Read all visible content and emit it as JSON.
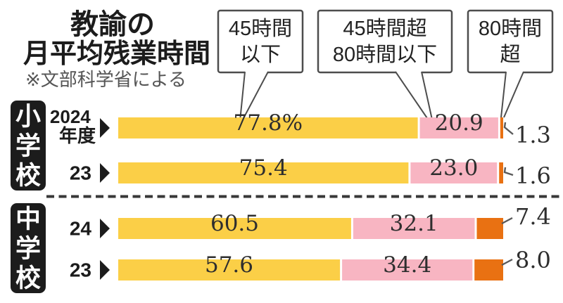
{
  "title": {
    "line1": "教諭の",
    "line2": "月平均残業時間",
    "note": "※文部科学省による"
  },
  "legend": [
    {
      "name": "45時間以下",
      "lines": [
        "45時間",
        "以下"
      ],
      "color": "#FBCF47"
    },
    {
      "name": "45時間超80時間以下",
      "lines": [
        "45時間超",
        "80時間以下"
      ],
      "color": "#F8B5C2"
    },
    {
      "name": "80時間超",
      "lines": [
        "80時間",
        "超"
      ],
      "color": "#E97112"
    }
  ],
  "groups": [
    {
      "name": "小学校",
      "chars": [
        "小",
        "学",
        "校"
      ]
    },
    {
      "name": "中学校",
      "chars": [
        "中",
        "学",
        "校"
      ]
    }
  ],
  "chart_data": {
    "type": "bar",
    "stacked": true,
    "orientation": "horizontal",
    "unit": "percent",
    "xlim": [
      0,
      100
    ],
    "title": "教諭の月平均残業時間",
    "source_note": "※文部科学省による",
    "series_names": [
      "45時間以下",
      "45時間超80時間以下",
      "80時間超"
    ],
    "series_colors": [
      "#FBCF47",
      "#F8B5C2",
      "#E97112"
    ],
    "rows": [
      {
        "group": "小学校",
        "year": "2024年度",
        "year_lines": [
          "2024",
          "年度"
        ],
        "values": [
          77.8,
          20.9,
          1.3
        ],
        "labels": [
          "77.8%",
          "20.9",
          "1.3"
        ]
      },
      {
        "group": "小学校",
        "year": "23",
        "year_lines": [
          "23"
        ],
        "values": [
          75.4,
          23.0,
          1.6
        ],
        "labels": [
          "75.4",
          "23.0",
          "1.6"
        ]
      },
      {
        "group": "中学校",
        "year": "24",
        "year_lines": [
          "24"
        ],
        "values": [
          60.5,
          32.1,
          7.4
        ],
        "labels": [
          "60.5",
          "32.1",
          "7.4"
        ]
      },
      {
        "group": "中学校",
        "year": "23",
        "year_lines": [
          "23"
        ],
        "values": [
          57.6,
          34.4,
          8.0
        ],
        "labels": [
          "57.6",
          "34.4",
          "8.0"
        ]
      }
    ]
  },
  "colors": {
    "bar_yellow": "#FBCF47",
    "bar_pink": "#F8B5C2",
    "bar_orange": "#E97112",
    "group_box": "#1c1c1c",
    "text_dark": "#222222",
    "number_text": "#2e2e2e",
    "note_gray": "#555555",
    "callout_border": "#4d4d4d",
    "leader_line": "#5a5a5a",
    "divider": "#383838"
  }
}
